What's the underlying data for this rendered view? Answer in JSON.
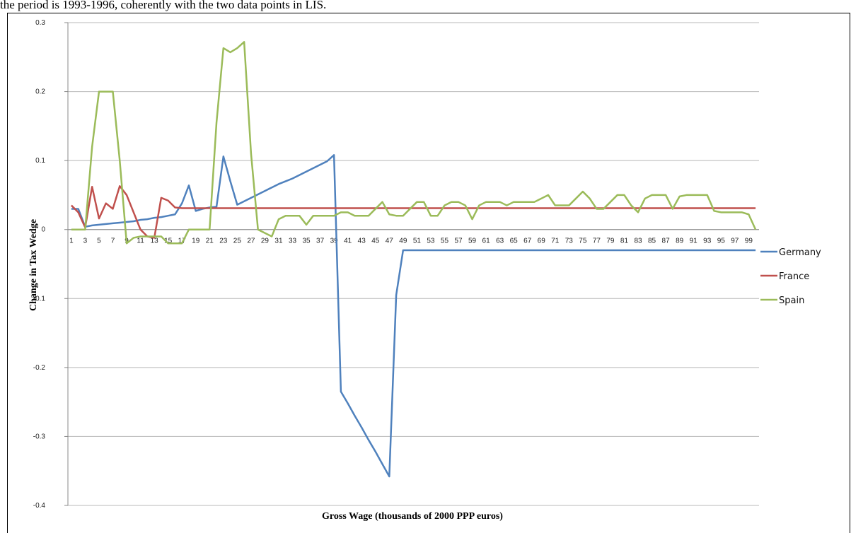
{
  "header_text": "the period is 1993-1996, coherently with the two data points in LIS.",
  "chart_data": {
    "type": "line",
    "x_label": "Gross Wage (thousands of 2000 PPP euros)",
    "y_label": "Change in Tax Wedge",
    "categories": [
      "1",
      null,
      "3",
      null,
      "5",
      null,
      "7",
      null,
      "9",
      null,
      "11",
      null,
      "13",
      null,
      "15",
      null,
      "17",
      null,
      "19",
      null,
      "21",
      null,
      "23",
      null,
      "25",
      null,
      "27",
      null,
      "29",
      null,
      "31",
      null,
      "33",
      null,
      "35",
      null,
      "37",
      null,
      "39",
      null,
      "41",
      null,
      "43",
      null,
      "45",
      null,
      "47",
      null,
      "49",
      null,
      "51",
      null,
      "53",
      null,
      "55",
      null,
      "57",
      null,
      "59",
      null,
      "61",
      null,
      "63",
      null,
      "65",
      null,
      "67",
      null,
      "69",
      null,
      "71",
      null,
      "73",
      null,
      "75",
      null,
      "77",
      null,
      "79",
      null,
      "81",
      null,
      "83",
      null,
      "85",
      null,
      "87",
      null,
      "89",
      null,
      "91",
      null,
      "93",
      null,
      "95",
      null,
      "97",
      null,
      "99",
      null
    ],
    "ylim": [
      -0.4,
      0.3
    ],
    "yticks": [
      -0.4,
      -0.3,
      -0.2,
      -0.1,
      0,
      0.1,
      0.2,
      0.3
    ],
    "grid": true,
    "legend": "right",
    "series": [
      {
        "name": "Germany",
        "color": "#4f81bd",
        "values": [
          0.03,
          0.03,
          0.004,
          0.006,
          0.007,
          0.008,
          0.009,
          0.01,
          0.011,
          0.012,
          0.014,
          0.015,
          0.017,
          0.018,
          0.02,
          0.022,
          0.038,
          0.064,
          0.027,
          0.03,
          0.032,
          0.033,
          0.106,
          0.07,
          0.036,
          0.041,
          0.046,
          0.051,
          0.056,
          0.061,
          0.066,
          0.07,
          0.074,
          0.079,
          0.084,
          0.089,
          0.094,
          0.099,
          0.108,
          -0.235,
          -0.252,
          -0.27,
          -0.287,
          -0.305,
          -0.322,
          -0.34,
          -0.358,
          -0.095,
          -0.03,
          -0.03,
          -0.03,
          -0.03,
          -0.03,
          -0.03,
          -0.03,
          -0.03,
          -0.03,
          -0.03,
          -0.03,
          -0.03,
          -0.03,
          -0.03,
          -0.03,
          -0.03,
          -0.03,
          -0.03,
          -0.03,
          -0.03,
          -0.03,
          -0.03,
          -0.03,
          -0.03,
          -0.03,
          -0.03,
          -0.03,
          -0.03,
          -0.03,
          -0.03,
          -0.03,
          -0.03,
          -0.03,
          -0.03,
          -0.03,
          -0.03,
          -0.03,
          -0.03,
          -0.03,
          -0.03,
          -0.03,
          -0.03,
          -0.03,
          -0.03,
          -0.03,
          -0.03,
          -0.03,
          -0.03,
          -0.03,
          -0.03,
          -0.03,
          -0.03
        ]
      },
      {
        "name": "France",
        "color": "#c0504d",
        "values": [
          0.035,
          0.025,
          0.003,
          0.062,
          0.016,
          0.038,
          0.03,
          0.063,
          0.05,
          0.025,
          0.0,
          -0.01,
          -0.012,
          0.046,
          0.042,
          0.032,
          0.031,
          0.031,
          0.031,
          0.031,
          0.031,
          0.031,
          0.031,
          0.031,
          0.031,
          0.031,
          0.031,
          0.031,
          0.031,
          0.031,
          0.031,
          0.031,
          0.031,
          0.031,
          0.031,
          0.031,
          0.031,
          0.031,
          0.031,
          0.031,
          0.031,
          0.031,
          0.031,
          0.031,
          0.031,
          0.031,
          0.031,
          0.031,
          0.031,
          0.031,
          0.031,
          0.031,
          0.031,
          0.031,
          0.031,
          0.031,
          0.031,
          0.031,
          0.031,
          0.031,
          0.031,
          0.031,
          0.031,
          0.031,
          0.031,
          0.031,
          0.031,
          0.031,
          0.031,
          0.031,
          0.031,
          0.031,
          0.031,
          0.031,
          0.031,
          0.031,
          0.031,
          0.031,
          0.031,
          0.031,
          0.031,
          0.031,
          0.031,
          0.031,
          0.031,
          0.031,
          0.031,
          0.031,
          0.031,
          0.031,
          0.031,
          0.031,
          0.031,
          0.031,
          0.031,
          0.031,
          0.031,
          0.031,
          0.031,
          0.031
        ]
      },
      {
        "name": "Spain",
        "color": "#9bbb59",
        "values": [
          0,
          0,
          0,
          0.12,
          0.2,
          0.2,
          0.2,
          0.1,
          -0.02,
          -0.012,
          -0.01,
          -0.01,
          -0.01,
          -0.01,
          -0.02,
          -0.02,
          -0.02,
          0,
          0,
          0,
          0,
          0.155,
          0.263,
          0.257,
          0.263,
          0.272,
          0.11,
          0,
          -0.005,
          -0.01,
          0.015,
          0.02,
          0.02,
          0.02,
          0.007,
          0.02,
          0.02,
          0.02,
          0.02,
          0.025,
          0.025,
          0.02,
          0.02,
          0.02,
          0.03,
          0.04,
          0.022,
          0.02,
          0.02,
          0.03,
          0.04,
          0.04,
          0.02,
          0.02,
          0.035,
          0.04,
          0.04,
          0.035,
          0.015,
          0.035,
          0.04,
          0.04,
          0.04,
          0.035,
          0.04,
          0.04,
          0.04,
          0.04,
          0.045,
          0.05,
          0.035,
          0.035,
          0.035,
          0.045,
          0.055,
          0.045,
          0.03,
          0.03,
          0.04,
          0.05,
          0.05,
          0.035,
          0.025,
          0.045,
          0.05,
          0.05,
          0.05,
          0.03,
          0.048,
          0.05,
          0.05,
          0.05,
          0.05,
          0.027,
          0.025,
          0.025,
          0.025,
          0.025,
          0.022,
          0
        ]
      }
    ]
  }
}
